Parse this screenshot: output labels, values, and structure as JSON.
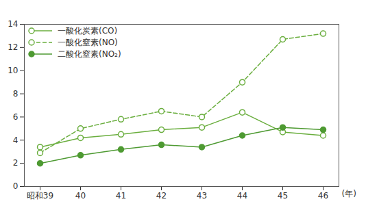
{
  "chart_data": {
    "type": "line",
    "categories": [
      "昭和39",
      "40",
      "41",
      "42",
      "43",
      "44",
      "45",
      "46"
    ],
    "x_label": "(年)",
    "ylim": [
      0,
      14
    ],
    "yticks": [
      0,
      2,
      4,
      6,
      8,
      10,
      12,
      14
    ],
    "grid": false,
    "legend": "top-left",
    "series": [
      {
        "name": "一酸化炭素(CO)",
        "color": "#6aae3e",
        "marker": "open circle",
        "line_style": "solid",
        "values": [
          3.4,
          4.2,
          4.5,
          4.9,
          5.1,
          6.4,
          4.7,
          4.4
        ]
      },
      {
        "name": "一酸化窒素(NO)",
        "color": "#6aae3e",
        "marker": "open circle",
        "line_style": "dashed",
        "values": [
          2.9,
          5.0,
          5.8,
          6.5,
          6.0,
          9.0,
          12.7,
          13.2
        ]
      },
      {
        "name": "二酸化窒素(NO₂)",
        "color": "#4e9a32",
        "marker": "filled circle",
        "line_style": "solid",
        "values": [
          2.0,
          2.7,
          3.2,
          3.6,
          3.4,
          4.4,
          5.1,
          4.9
        ]
      }
    ]
  }
}
